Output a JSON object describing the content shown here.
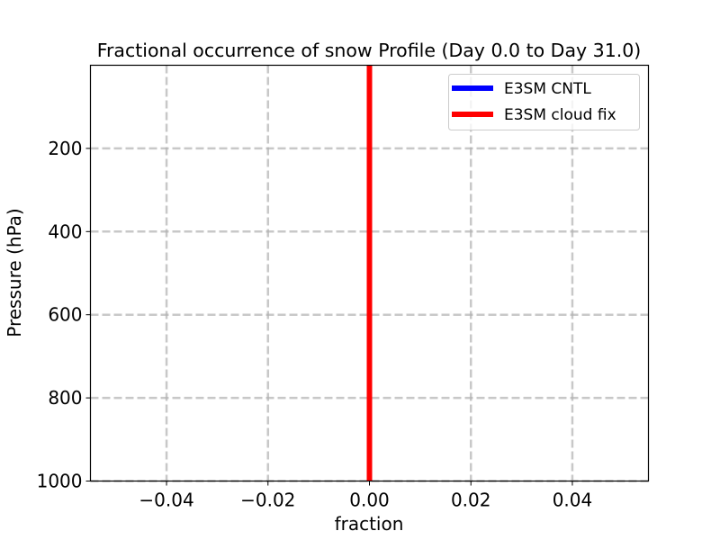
{
  "chart_data": {
    "type": "line",
    "title": "Fractional occurrence of snow Profile (Day 0.0 to Day 31.0)",
    "xlabel": "fraction",
    "ylabel": "Pressure (hPa)",
    "xlim": [
      -0.055,
      0.055
    ],
    "ylim": [
      1000,
      0
    ],
    "y_inverted": true,
    "grid": true,
    "grid_style": "dashed",
    "legend_position": "upper right",
    "xticks": [
      -0.04,
      -0.02,
      0.0,
      0.02,
      0.04
    ],
    "xtick_labels": [
      "−0.04",
      "−0.02",
      "0.00",
      "0.02",
      "0.04"
    ],
    "yticks": [
      200,
      400,
      600,
      800,
      1000
    ],
    "ytick_labels": [
      "200",
      "400",
      "600",
      "800",
      "1000"
    ],
    "series": [
      {
        "name": "E3SM CNTL",
        "color": "#0000ff",
        "x": [
          0.0,
          0.0
        ],
        "y": [
          1000,
          0
        ]
      },
      {
        "name": "E3SM cloud fix",
        "color": "#ff0000",
        "x": [
          0.0,
          0.0
        ],
        "y": [
          1000,
          0
        ]
      }
    ]
  },
  "legend": {
    "items": [
      {
        "label": "E3SM CNTL",
        "color": "#0000ff"
      },
      {
        "label": "E3SM cloud fix",
        "color": "#ff0000"
      }
    ]
  }
}
